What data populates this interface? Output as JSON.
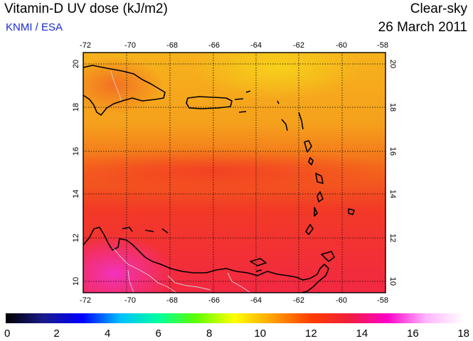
{
  "header": {
    "title": "Vitamin-D UV dose (kJ/m2)",
    "source": "KNMI / ESA",
    "condition": "Clear-sky",
    "date": "26 March 2011"
  },
  "map": {
    "lon_ticks": [
      "-72",
      "-70",
      "-68",
      "-66",
      "-64",
      "-62",
      "-60",
      "-58"
    ],
    "lat_ticks": [
      "10",
      "12",
      "14",
      "16",
      "18",
      "20"
    ],
    "colors": {
      "low": "#f7b41a",
      "mid": "#f4581a",
      "high": "#f2243a",
      "peak": "#f233b6",
      "land_outline": "#000000",
      "border": "#c8c8c8"
    }
  },
  "colorbar": {
    "labels": [
      "0",
      "2",
      "4",
      "6",
      "8",
      "10",
      "12",
      "14",
      "16",
      "18"
    ],
    "stops": [
      "#000000",
      "#1a1a8c",
      "#0000ff",
      "#00c0ff",
      "#00ffa0",
      "#60ff00",
      "#ffff00",
      "#ffa000",
      "#ff3c00",
      "#f01e3c",
      "#ff00c8",
      "#ffb4ff",
      "#ffffff"
    ]
  }
}
